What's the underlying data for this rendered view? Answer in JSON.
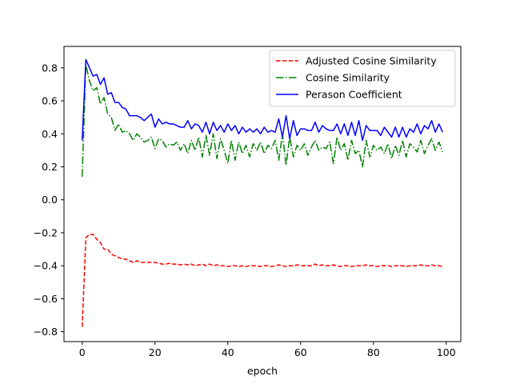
{
  "chart_data": {
    "type": "line",
    "xlabel": "epoch",
    "ylabel": "",
    "title": "",
    "xlim": [
      -5,
      104
    ],
    "ylim": [
      -0.86,
      0.93
    ],
    "xticks": [
      0,
      20,
      40,
      60,
      80,
      100
    ],
    "yticks": [
      -0.8,
      -0.6,
      -0.4,
      -0.2,
      0.0,
      0.2,
      0.4,
      0.6,
      0.8
    ],
    "xtick_labels": [
      "0",
      "20",
      "40",
      "60",
      "80",
      "100"
    ],
    "ytick_labels": [
      "−0.8",
      "−0.6",
      "−0.4",
      "−0.2",
      "0.0",
      "0.2",
      "0.4",
      "0.6",
      "0.8"
    ],
    "grid": false,
    "legend_position": "upper-right",
    "series": [
      {
        "name": "Adjusted Cosine Similarity",
        "color": "#ff0000",
        "dash": "dashed",
        "x": [
          0,
          1,
          2,
          3,
          4,
          5,
          6,
          7,
          8,
          9,
          10,
          11,
          12,
          13,
          14,
          15,
          16,
          17,
          18,
          19,
          20,
          21,
          22,
          23,
          24,
          25,
          26,
          27,
          28,
          29,
          30,
          31,
          32,
          33,
          34,
          35,
          36,
          37,
          38,
          39,
          40,
          41,
          42,
          43,
          44,
          45,
          46,
          47,
          48,
          49,
          50,
          51,
          52,
          53,
          54,
          55,
          56,
          57,
          58,
          59,
          60,
          61,
          62,
          63,
          64,
          65,
          66,
          67,
          68,
          69,
          70,
          71,
          72,
          73,
          74,
          75,
          76,
          77,
          78,
          79,
          80,
          81,
          82,
          83,
          84,
          85,
          86,
          87,
          88,
          89,
          90,
          91,
          92,
          93,
          94,
          95,
          96,
          97,
          98,
          99
        ],
        "y": [
          -0.77,
          -0.23,
          -0.21,
          -0.21,
          -0.24,
          -0.26,
          -0.3,
          -0.3,
          -0.33,
          -0.34,
          -0.35,
          -0.36,
          -0.36,
          -0.37,
          -0.38,
          -0.37,
          -0.38,
          -0.38,
          -0.38,
          -0.38,
          -0.38,
          -0.385,
          -0.39,
          -0.39,
          -0.385,
          -0.39,
          -0.39,
          -0.395,
          -0.39,
          -0.395,
          -0.39,
          -0.4,
          -0.395,
          -0.39,
          -0.4,
          -0.39,
          -0.4,
          -0.395,
          -0.4,
          -0.4,
          -0.405,
          -0.4,
          -0.4,
          -0.405,
          -0.4,
          -0.405,
          -0.4,
          -0.4,
          -0.4,
          -0.405,
          -0.4,
          -0.4,
          -0.405,
          -0.4,
          -0.395,
          -0.4,
          -0.405,
          -0.4,
          -0.4,
          -0.395,
          -0.4,
          -0.4,
          -0.4,
          -0.4,
          -0.39,
          -0.4,
          -0.395,
          -0.4,
          -0.4,
          -0.395,
          -0.4,
          -0.405,
          -0.4,
          -0.4,
          -0.405,
          -0.4,
          -0.4,
          -0.4,
          -0.395,
          -0.4,
          -0.4,
          -0.405,
          -0.4,
          -0.4,
          -0.4,
          -0.405,
          -0.4,
          -0.4,
          -0.4,
          -0.405,
          -0.4,
          -0.4,
          -0.4,
          -0.395,
          -0.4,
          -0.4,
          -0.395,
          -0.4,
          -0.4,
          -0.405
        ]
      },
      {
        "name": "Cosine Similarity",
        "color": "#008000",
        "dash": "dashdot",
        "x": [
          0,
          1,
          2,
          3,
          4,
          5,
          6,
          7,
          8,
          9,
          10,
          11,
          12,
          13,
          14,
          15,
          16,
          17,
          18,
          19,
          20,
          21,
          22,
          23,
          24,
          25,
          26,
          27,
          28,
          29,
          30,
          31,
          32,
          33,
          34,
          35,
          36,
          37,
          38,
          39,
          40,
          41,
          42,
          43,
          44,
          45,
          46,
          47,
          48,
          49,
          50,
          51,
          52,
          53,
          54,
          55,
          56,
          57,
          58,
          59,
          60,
          61,
          62,
          63,
          64,
          65,
          66,
          67,
          68,
          69,
          70,
          71,
          72,
          73,
          74,
          75,
          76,
          77,
          78,
          79,
          80,
          81,
          82,
          83,
          84,
          85,
          86,
          87,
          88,
          89,
          90,
          91,
          92,
          93,
          94,
          95,
          96,
          97,
          98,
          99
        ],
        "y": [
          0.14,
          0.82,
          0.72,
          0.66,
          0.68,
          0.58,
          0.62,
          0.52,
          0.5,
          0.42,
          0.46,
          0.41,
          0.42,
          0.4,
          0.36,
          0.4,
          0.38,
          0.35,
          0.36,
          0.38,
          0.31,
          0.37,
          0.36,
          0.32,
          0.34,
          0.33,
          0.35,
          0.3,
          0.34,
          0.28,
          0.36,
          0.3,
          0.38,
          0.26,
          0.39,
          0.27,
          0.4,
          0.25,
          0.37,
          0.3,
          0.22,
          0.36,
          0.24,
          0.35,
          0.28,
          0.33,
          0.26,
          0.34,
          0.3,
          0.35,
          0.28,
          0.33,
          0.31,
          0.36,
          0.24,
          0.4,
          0.21,
          0.38,
          0.26,
          0.33,
          0.3,
          0.34,
          0.27,
          0.32,
          0.36,
          0.3,
          0.32,
          0.31,
          0.35,
          0.22,
          0.38,
          0.3,
          0.34,
          0.24,
          0.36,
          0.28,
          0.3,
          0.2,
          0.36,
          0.26,
          0.33,
          0.3,
          0.32,
          0.28,
          0.34,
          0.25,
          0.33,
          0.27,
          0.36,
          0.26,
          0.34,
          0.32,
          0.29,
          0.36,
          0.28,
          0.33,
          0.37,
          0.3,
          0.35,
          0.29
        ]
      },
      {
        "name": "Perason Coefficient",
        "color": "#0000ff",
        "dash": "solid",
        "x": [
          0,
          1,
          2,
          3,
          4,
          5,
          6,
          7,
          8,
          9,
          10,
          11,
          12,
          13,
          14,
          15,
          16,
          17,
          18,
          19,
          20,
          21,
          22,
          23,
          24,
          25,
          26,
          27,
          28,
          29,
          30,
          31,
          32,
          33,
          34,
          35,
          36,
          37,
          38,
          39,
          40,
          41,
          42,
          43,
          44,
          45,
          46,
          47,
          48,
          49,
          50,
          51,
          52,
          53,
          54,
          55,
          56,
          57,
          58,
          59,
          60,
          61,
          62,
          63,
          64,
          65,
          66,
          67,
          68,
          69,
          70,
          71,
          72,
          73,
          74,
          75,
          76,
          77,
          78,
          79,
          80,
          81,
          82,
          83,
          84,
          85,
          86,
          87,
          88,
          89,
          90,
          91,
          92,
          93,
          94,
          95,
          96,
          97,
          98,
          99
        ],
        "y": [
          0.36,
          0.85,
          0.8,
          0.75,
          0.76,
          0.7,
          0.74,
          0.64,
          0.65,
          0.59,
          0.59,
          0.56,
          0.55,
          0.51,
          0.51,
          0.51,
          0.5,
          0.48,
          0.5,
          0.52,
          0.44,
          0.49,
          0.46,
          0.47,
          0.46,
          0.46,
          0.45,
          0.44,
          0.44,
          0.48,
          0.43,
          0.46,
          0.45,
          0.41,
          0.47,
          0.4,
          0.47,
          0.42,
          0.45,
          0.41,
          0.46,
          0.42,
          0.45,
          0.4,
          0.44,
          0.41,
          0.43,
          0.41,
          0.43,
          0.4,
          0.44,
          0.41,
          0.42,
          0.41,
          0.49,
          0.38,
          0.51,
          0.37,
          0.48,
          0.39,
          0.43,
          0.43,
          0.42,
          0.42,
          0.47,
          0.41,
          0.45,
          0.43,
          0.42,
          0.42,
          0.46,
          0.4,
          0.46,
          0.39,
          0.47,
          0.39,
          0.48,
          0.36,
          0.45,
          0.42,
          0.42,
          0.42,
          0.39,
          0.44,
          0.41,
          0.38,
          0.44,
          0.38,
          0.44,
          0.38,
          0.43,
          0.41,
          0.46,
          0.4,
          0.45,
          0.43,
          0.48,
          0.41,
          0.46,
          0.41
        ]
      }
    ]
  }
}
